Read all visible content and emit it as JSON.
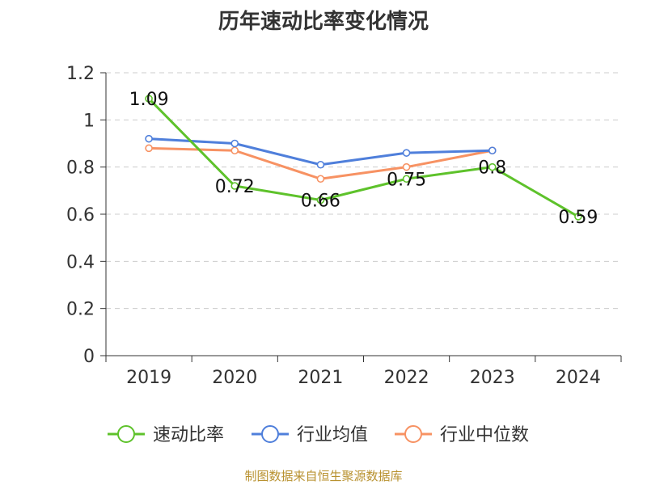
{
  "chart_data": {
    "type": "line",
    "title": "历年速动比率变化情况",
    "categories": [
      "2019",
      "2020",
      "2021",
      "2022",
      "2023",
      "2024"
    ],
    "ylim": [
      0,
      1.2
    ],
    "yticks": [
      "0",
      "0.2",
      "0.4",
      "0.6",
      "0.8",
      "1",
      "1.2"
    ],
    "grid": true,
    "legend_position": "bottom",
    "series": [
      {
        "name": "速动比率",
        "color": "#5ec22b",
        "values": [
          1.09,
          0.72,
          0.66,
          0.75,
          0.8,
          0.59
        ],
        "labels": [
          "1.09",
          "0.72",
          "0.66",
          "0.75",
          "0.8",
          "0.59"
        ]
      },
      {
        "name": "行业均值",
        "color": "#4f7fdb",
        "values": [
          0.92,
          0.9,
          0.81,
          0.86,
          0.87,
          null
        ]
      },
      {
        "name": "行业中位数",
        "color": "#f79263",
        "values": [
          0.88,
          0.87,
          0.75,
          0.8,
          0.87,
          null
        ]
      }
    ]
  },
  "source_text": "制图数据来自恒生聚源数据库"
}
